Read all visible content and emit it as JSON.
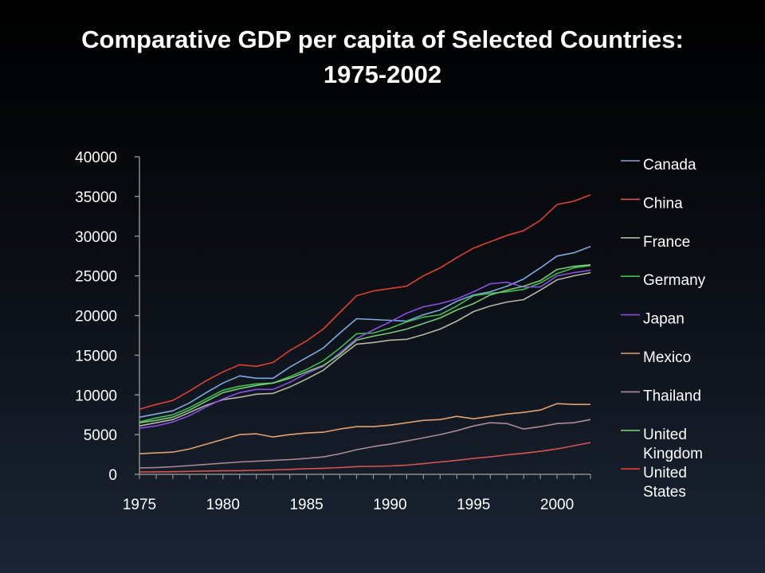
{
  "slide": {
    "title": "Comparative GDP per capita of Selected Countries: 1975-2002"
  },
  "chart_data": {
    "type": "line",
    "title": "Comparative GDP per capita of Selected Countries: 1975-2002",
    "xlabel": "",
    "ylabel": "",
    "xlim": [
      1975,
      2002
    ],
    "ylim": [
      0,
      40000
    ],
    "x_ticks": [
      1975,
      1980,
      1985,
      1990,
      1995,
      2000
    ],
    "y_ticks": [
      0,
      5000,
      10000,
      15000,
      20000,
      25000,
      30000,
      35000,
      40000
    ],
    "grid": false,
    "legend_position": "right",
    "x": [
      1975,
      1976,
      1977,
      1978,
      1979,
      1980,
      1981,
      1982,
      1983,
      1984,
      1985,
      1986,
      1987,
      1988,
      1989,
      1990,
      1991,
      1992,
      1993,
      1994,
      1995,
      1996,
      1997,
      1998,
      1999,
      2000,
      2001,
      2002
    ],
    "series": [
      {
        "name": "Canada",
        "color": "#7fa9dc",
        "values": [
          7200,
          7600,
          8000,
          9000,
          10300,
          11500,
          12400,
          12100,
          12100,
          13500,
          14700,
          15900,
          17800,
          19600,
          19500,
          19400,
          19300,
          20100,
          20700,
          21800,
          22600,
          23000,
          23700,
          24600,
          26000,
          27500,
          27900,
          28700
        ]
      },
      {
        "name": "China",
        "color": "#d9534f",
        "values": [
          300,
          310,
          330,
          370,
          410,
          440,
          460,
          500,
          550,
          620,
          700,
          760,
          850,
          970,
          1000,
          1050,
          1150,
          1340,
          1550,
          1760,
          2000,
          2200,
          2450,
          2650,
          2900,
          3200,
          3600,
          4000
        ]
      },
      {
        "name": "France",
        "color": "#b5b5a0",
        "values": [
          6100,
          6500,
          6900,
          7800,
          8700,
          9400,
          9700,
          10100,
          10200,
          11000,
          12000,
          13100,
          14800,
          16400,
          16600,
          16900,
          17000,
          17600,
          18300,
          19300,
          20500,
          21200,
          21700,
          22000,
          23200,
          24500,
          25000,
          25400
        ]
      },
      {
        "name": "Germany",
        "color": "#3fbf4f",
        "values": [
          6600,
          7100,
          7500,
          8400,
          9500,
          10600,
          11100,
          11400,
          11500,
          12300,
          13200,
          14300,
          15900,
          17700,
          17800,
          18400,
          19200,
          19800,
          20100,
          21200,
          22500,
          22800,
          23000,
          23300,
          24100,
          25300,
          26000,
          26300
        ]
      },
      {
        "name": "Japan",
        "color": "#8a4fe0",
        "values": [
          5800,
          6100,
          6600,
          7400,
          8500,
          9500,
          10300,
          10700,
          10700,
          11600,
          12700,
          13600,
          15300,
          17100,
          18200,
          19200,
          20300,
          21100,
          21500,
          22100,
          23000,
          24000,
          24200,
          23600,
          23600,
          25000,
          25400,
          25700
        ]
      },
      {
        "name": "Mexico",
        "color": "#e0a070",
        "values": [
          2600,
          2700,
          2800,
          3200,
          3800,
          4400,
          5000,
          5100,
          4700,
          5000,
          5200,
          5300,
          5700,
          6000,
          6000,
          6200,
          6500,
          6800,
          6900,
          7300,
          7000,
          7300,
          7600,
          7800,
          8100,
          8900,
          8800,
          8800
        ]
      },
      {
        "name": "Thailand",
        "color": "#b08a95",
        "values": [
          800,
          850,
          950,
          1100,
          1250,
          1400,
          1550,
          1650,
          1750,
          1850,
          2000,
          2200,
          2600,
          3100,
          3500,
          3800,
          4200,
          4600,
          5000,
          5500,
          6100,
          6500,
          6400,
          5700,
          6000,
          6400,
          6500,
          6900
        ]
      },
      {
        "name": "United Kingdom",
        "color": "#78c878",
        "values": [
          6500,
          6800,
          7200,
          8100,
          9200,
          10300,
          10800,
          11200,
          11500,
          12100,
          12900,
          13700,
          15100,
          16900,
          17400,
          17800,
          18300,
          19000,
          19700,
          20700,
          21500,
          22600,
          23200,
          23700,
          24400,
          25800,
          26200,
          26400
        ]
      },
      {
        "name": "United States",
        "color": "#e04030",
        "values": [
          8200,
          8800,
          9300,
          10500,
          11800,
          12900,
          13800,
          13600,
          14100,
          15600,
          16800,
          18300,
          20400,
          22500,
          23100,
          23400,
          23700,
          25000,
          26000,
          27300,
          28500,
          29300,
          30100,
          30700,
          32000,
          34000,
          34400,
          35200
        ]
      }
    ]
  }
}
